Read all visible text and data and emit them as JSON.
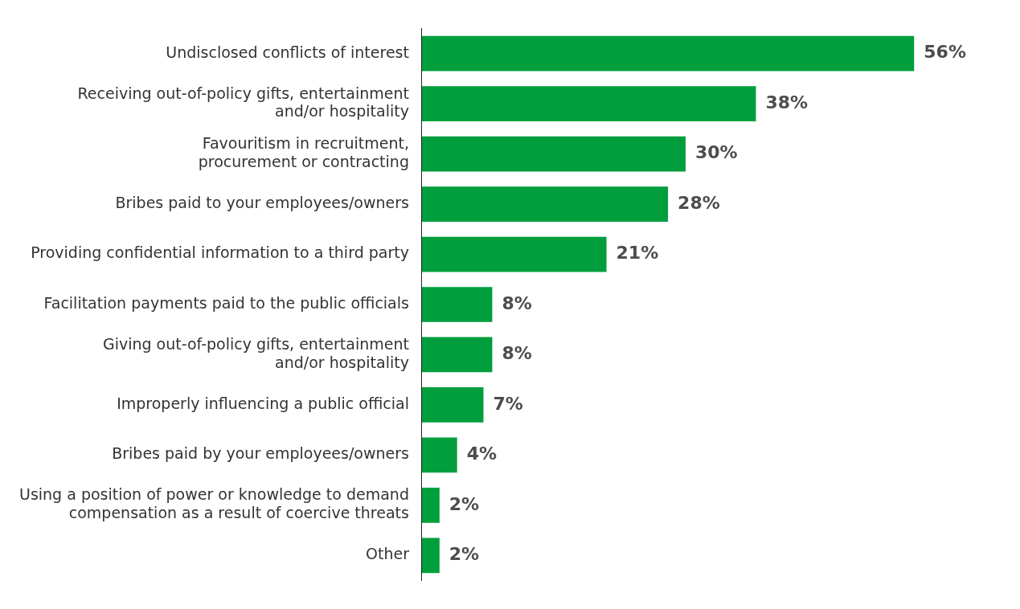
{
  "chart_data": {
    "type": "bar",
    "orientation": "horizontal",
    "categories": [
      "Undisclosed conflicts of interest",
      "Receiving out-of-policy gifts, entertainment\nand/or hospitality",
      "Favouritism in recruitment,\nprocurement or contracting",
      "Bribes paid to your employees/owners",
      "Providing confidential information to a third party",
      "Facilitation payments paid to the public officials",
      "Giving out-of-policy gifts, entertainment\nand/or hospitality",
      "Improperly influencing a public official",
      "Bribes paid by your employees/owners",
      "Using a position of power or knowledge to demand\ncompensation as a result of coercive threats",
      "Other"
    ],
    "values": [
      56,
      38,
      30,
      28,
      21,
      8,
      8,
      7,
      4,
      2,
      2
    ],
    "value_labels": [
      "56%",
      "38%",
      "30%",
      "28%",
      "21%",
      "8%",
      "8%",
      "7%",
      "4%",
      "2%",
      "2%"
    ],
    "color": "#009e3d",
    "grid": false,
    "legend": false,
    "tick_labels": "y"
  }
}
